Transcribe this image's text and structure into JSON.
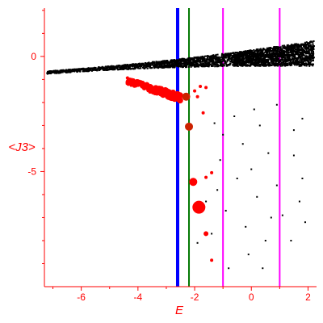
{
  "chart_data": {
    "type": "scatter",
    "xlabel": "E",
    "ylabel": "<J3>",
    "xlim": [
      -7.3,
      2.3
    ],
    "ylim": [
      -10,
      2.1
    ],
    "xticks": [
      -6,
      -4,
      -2,
      0,
      2
    ],
    "yticks": [
      0,
      -5
    ],
    "xtick_labels": [
      "-6",
      "-4",
      "-2",
      "0",
      "2"
    ],
    "ytick_labels": [
      "0",
      "-5"
    ],
    "grid": false,
    "colors": {
      "axes": "#ff0000",
      "black_points": "#000000",
      "red_points": "#ff0000",
      "dark_red_points": "#cc2200",
      "blue_line": "#0000ff",
      "green_line": "#007700",
      "magenta_lines": "#ff00ff"
    },
    "vertical_lines": [
      {
        "x": -2.6,
        "color": "#0000ff"
      },
      {
        "x": -2.2,
        "color": "#007700"
      },
      {
        "x": -1.0,
        "color": "#ff00ff"
      },
      {
        "x": 1.0,
        "color": "#ff00ff"
      }
    ],
    "black_dense_band": {
      "x_start": -7.2,
      "x_end": 2.2,
      "y_start": -0.7,
      "y_end": 0.12,
      "spread_start": 0.12,
      "spread_end": 1.1
    },
    "black_sparse_points": [
      {
        "x": -1.3,
        "y": -2.9
      },
      {
        "x": -1.0,
        "y": -3.4
      },
      {
        "x": -0.6,
        "y": -2.6
      },
      {
        "x": -0.3,
        "y": -3.8
      },
      {
        "x": 0.1,
        "y": -2.3
      },
      {
        "x": 0.3,
        "y": -3.0
      },
      {
        "x": 0.6,
        "y": -4.2
      },
      {
        "x": 0.9,
        "y": -2.1
      },
      {
        "x": 1.5,
        "y": -3.2
      },
      {
        "x": 1.8,
        "y": -2.7
      },
      {
        "x": -1.6,
        "y": -6.3
      },
      {
        "x": -1.2,
        "y": -5.8
      },
      {
        "x": -0.9,
        "y": -6.7
      },
      {
        "x": -0.5,
        "y": -5.3
      },
      {
        "x": -0.2,
        "y": -7.4
      },
      {
        "x": 0.2,
        "y": -6.1
      },
      {
        "x": 0.5,
        "y": -8.0
      },
      {
        "x": 0.9,
        "y": -5.6
      },
      {
        "x": 1.1,
        "y": -6.9
      },
      {
        "x": 1.4,
        "y": -8.0
      },
      {
        "x": 1.7,
        "y": -6.3
      },
      {
        "x": 1.9,
        "y": -7.2
      },
      {
        "x": -1.9,
        "y": -8.1
      },
      {
        "x": -1.4,
        "y": -7.7
      },
      {
        "x": -0.8,
        "y": -9.2
      },
      {
        "x": -0.1,
        "y": -8.6
      },
      {
        "x": 0.4,
        "y": -9.2
      },
      {
        "x": 0.7,
        "y": -7.0
      },
      {
        "x": 1.8,
        "y": -5.3
      },
      {
        "x": 1.5,
        "y": -4.3
      },
      {
        "x": 0.0,
        "y": -4.9
      },
      {
        "x": -1.1,
        "y": -4.5
      }
    ],
    "red_cluster": {
      "x_start": -4.4,
      "x_end": -2.5,
      "y_start": -1.05,
      "y_end": -1.8
    },
    "red_points": [
      {
        "x": -2.3,
        "y": -1.75,
        "r": 5
      },
      {
        "x": -2.2,
        "y": -3.05,
        "r": 5
      },
      {
        "x": -2.05,
        "y": -5.45,
        "r": 5
      },
      {
        "x": -1.85,
        "y": -6.55,
        "r": 8
      },
      {
        "x": -1.6,
        "y": -7.7,
        "r": 3
      },
      {
        "x": -1.6,
        "y": -5.25,
        "r": 2
      },
      {
        "x": -1.4,
        "y": -5.05,
        "r": 2
      },
      {
        "x": -1.4,
        "y": -8.85,
        "r": 2
      },
      {
        "x": -1.7,
        "y": -2.45,
        "r": 2
      },
      {
        "x": -2.0,
        "y": -1.5,
        "r": 2
      },
      {
        "x": -1.8,
        "y": -1.3,
        "r": 2
      },
      {
        "x": -1.6,
        "y": -1.35,
        "r": 2
      },
      {
        "x": -1.9,
        "y": -1.75,
        "r": 2
      }
    ]
  }
}
